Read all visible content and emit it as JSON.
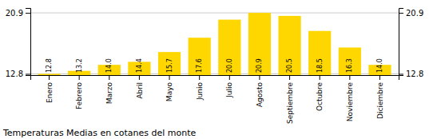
{
  "chart_data": {
    "type": "bar",
    "title": "Temperaturas Medias en cotanes del monte",
    "categories": [
      "Enero",
      "Febrero",
      "Marzo",
      "Abril",
      "Mayo",
      "Junio",
      "Julio",
      "Agosto",
      "Septiembre",
      "Octubre",
      "Noviembre",
      "Diciembre"
    ],
    "values": [
      12.8,
      13.2,
      14.0,
      14.4,
      15.7,
      17.6,
      20.0,
      20.9,
      20.5,
      18.5,
      16.3,
      14.0
    ],
    "value_labels": [
      "12.8",
      "13.2",
      "14.0",
      "14.4",
      "15.7",
      "17.6",
      "20.0",
      "20.9",
      "20.5",
      "18.5",
      "16.3",
      "14.0"
    ],
    "data_labels": true,
    "color": "#FFD700",
    "ylim": [
      12.638,
      21.548
    ],
    "yticks": [
      12.8,
      20.9
    ],
    "grid": true
  }
}
